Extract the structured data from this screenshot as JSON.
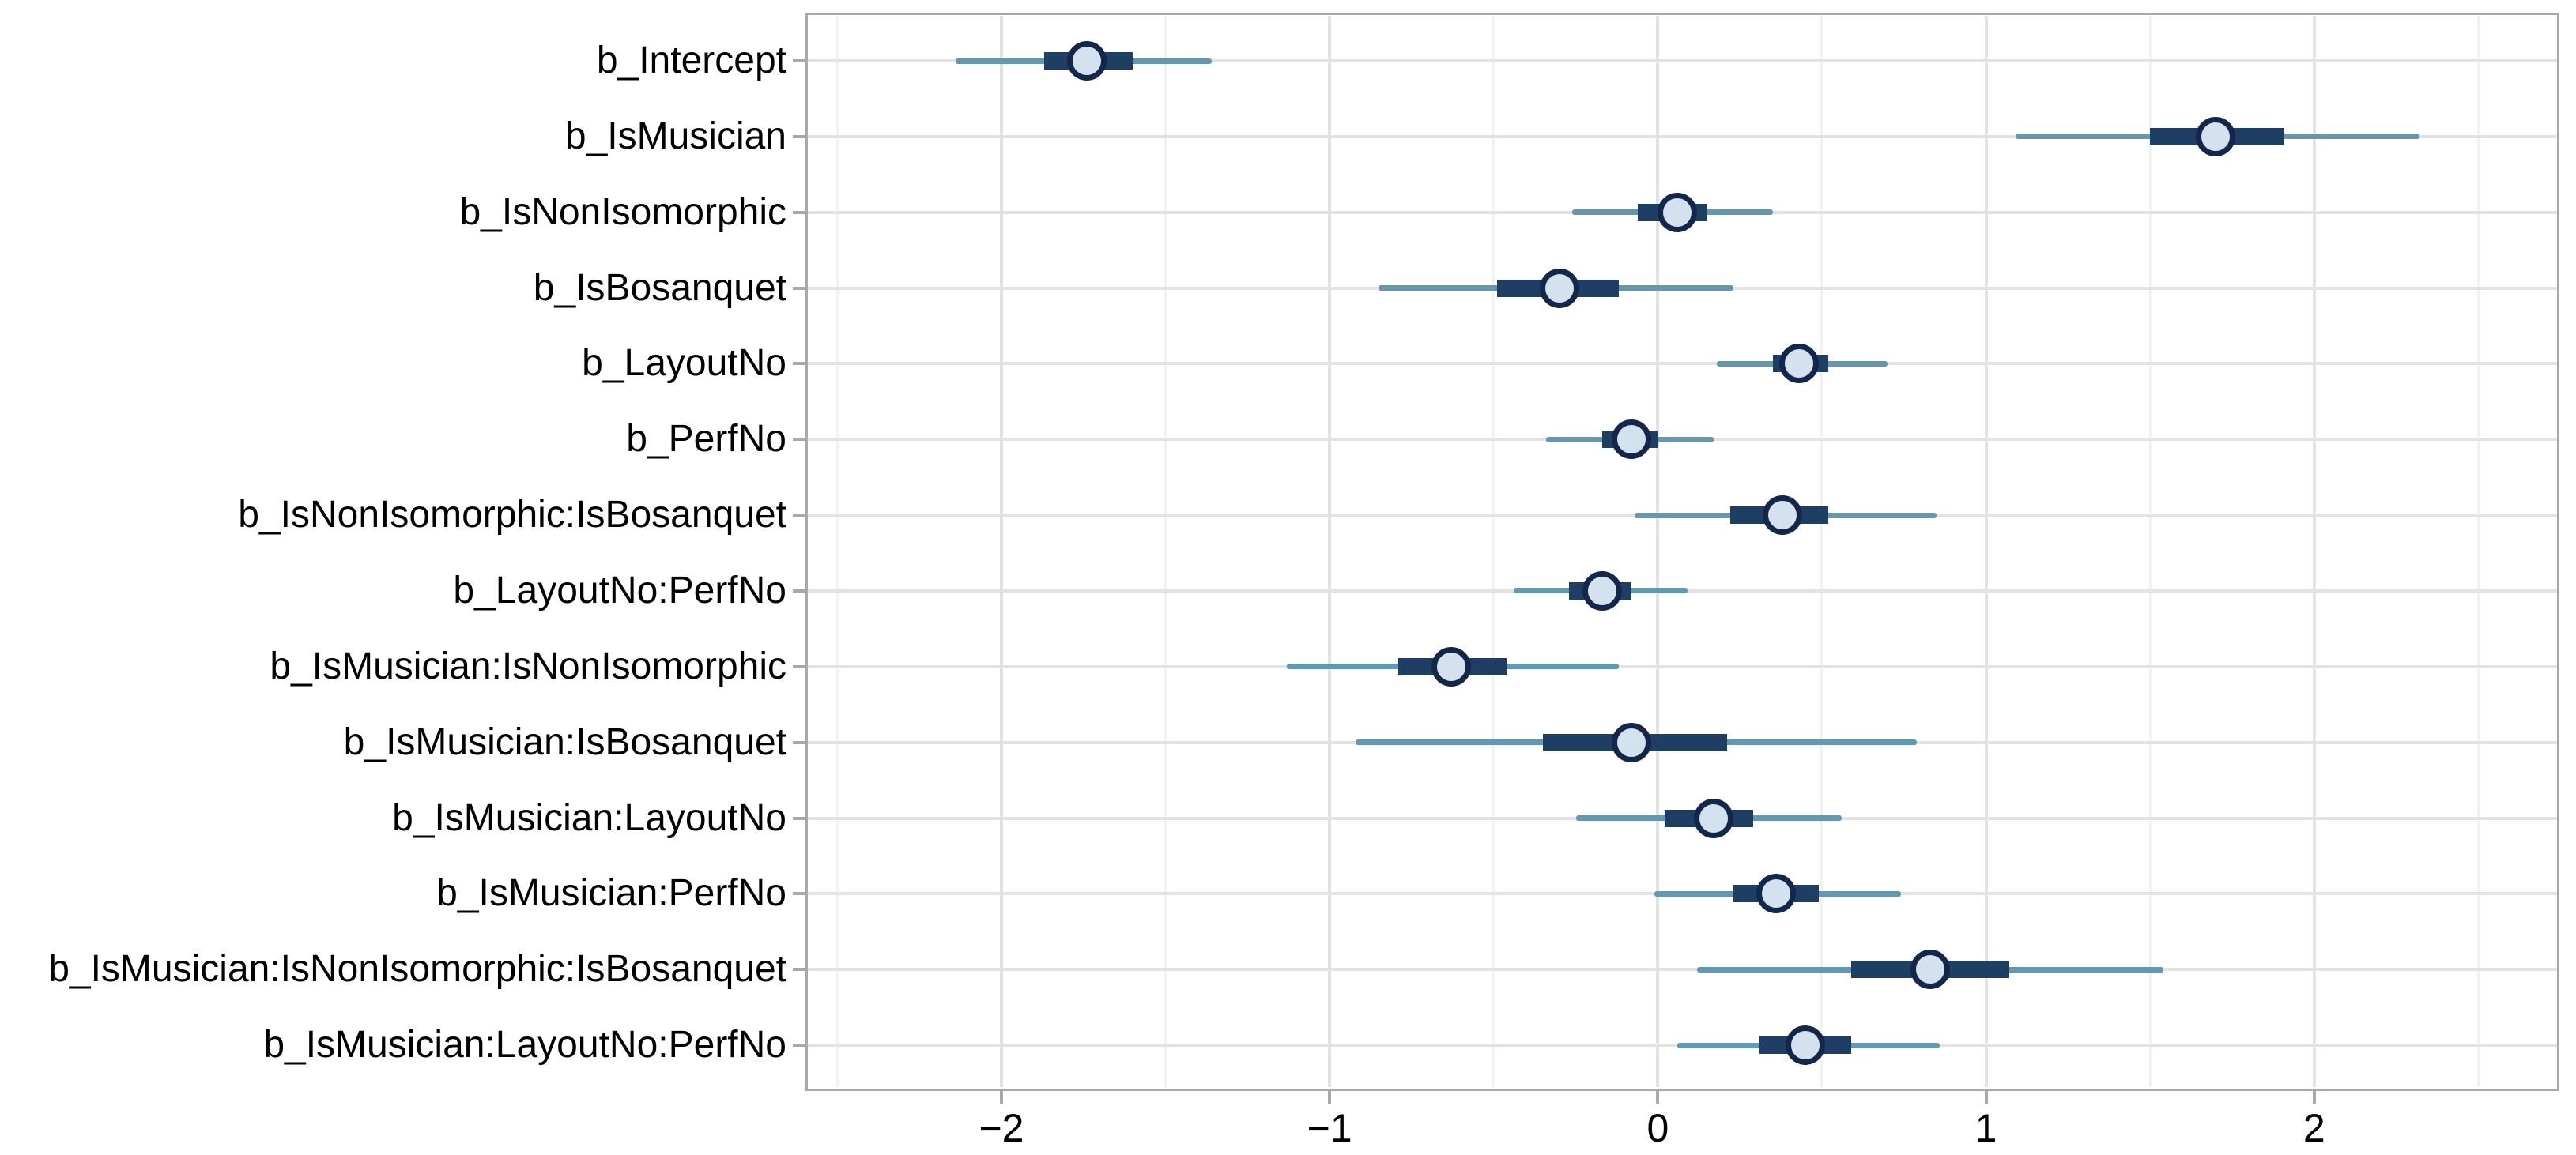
{
  "chart_data": {
    "type": "interval",
    "title": "",
    "xlabel": "",
    "ylabel": "",
    "point_estimate": "median",
    "legend": "none",
    "grid": "on",
    "xlim": [
      -2.59,
      2.74
    ],
    "x_major_ticks": [
      -2,
      -1,
      0,
      1,
      2
    ],
    "x_tick_labels": [
      "−2",
      "−1",
      "0",
      "1",
      "2"
    ],
    "x_minor_gridlines": [
      -2.5,
      -1.5,
      -0.5,
      0.5,
      1.5,
      2.5
    ],
    "categories": [
      "b_Intercept",
      "b_IsMusician",
      "b_IsNonIsomorphic",
      "b_IsBosanquet",
      "b_LayoutNo",
      "b_PerfNo",
      "b_IsNonIsomorphic:IsBosanquet",
      "b_LayoutNo:PerfNo",
      "b_IsMusician:IsNonIsomorphic",
      "b_IsMusician:IsBosanquet",
      "b_IsMusician:LayoutNo",
      "b_IsMusician:PerfNo",
      "b_IsMusician:IsNonIsomorphic:IsBosanquet",
      "b_IsMusician:LayoutNo:PerfNo"
    ],
    "series": [
      {
        "parameter": "b_Intercept",
        "outer": [
          -2.14,
          -1.36
        ],
        "inner": [
          -1.87,
          -1.6
        ],
        "median": -1.74
      },
      {
        "parameter": "b_IsMusician",
        "outer": [
          1.09,
          2.32
        ],
        "inner": [
          1.5,
          1.91
        ],
        "median": 1.7
      },
      {
        "parameter": "b_IsNonIsomorphic",
        "outer": [
          -0.26,
          0.35
        ],
        "inner": [
          -0.06,
          0.15
        ],
        "median": 0.06
      },
      {
        "parameter": "b_IsBosanquet",
        "outer": [
          -0.85,
          0.23
        ],
        "inner": [
          -0.49,
          -0.12
        ],
        "median": -0.3
      },
      {
        "parameter": "b_LayoutNo",
        "outer": [
          0.18,
          0.7
        ],
        "inner": [
          0.35,
          0.52
        ],
        "median": 0.43
      },
      {
        "parameter": "b_PerfNo",
        "outer": [
          -0.34,
          0.17
        ],
        "inner": [
          -0.17,
          0.0
        ],
        "median": -0.08
      },
      {
        "parameter": "b_IsNonIsomorphic:IsBosanquet",
        "outer": [
          -0.07,
          0.85
        ],
        "inner": [
          0.22,
          0.52
        ],
        "median": 0.38
      },
      {
        "parameter": "b_LayoutNo:PerfNo",
        "outer": [
          -0.44,
          0.09
        ],
        "inner": [
          -0.27,
          -0.08
        ],
        "median": -0.17
      },
      {
        "parameter": "b_IsMusician:IsNonIsomorphic",
        "outer": [
          -1.13,
          -0.12
        ],
        "inner": [
          -0.79,
          -0.46
        ],
        "median": -0.63
      },
      {
        "parameter": "b_IsMusician:IsBosanquet",
        "outer": [
          -0.92,
          0.79
        ],
        "inner": [
          -0.35,
          0.21
        ],
        "median": -0.08
      },
      {
        "parameter": "b_IsMusician:LayoutNo",
        "outer": [
          -0.25,
          0.56
        ],
        "inner": [
          0.02,
          0.29
        ],
        "median": 0.17
      },
      {
        "parameter": "b_IsMusician:PerfNo",
        "outer": [
          -0.01,
          0.74
        ],
        "inner": [
          0.23,
          0.49
        ],
        "median": 0.36
      },
      {
        "parameter": "b_IsMusician:IsNonIsomorphic:IsBosanquet",
        "outer": [
          0.12,
          1.54
        ],
        "inner": [
          0.59,
          1.07
        ],
        "median": 0.83
      },
      {
        "parameter": "b_IsMusician:LayoutNo:PerfNo",
        "outer": [
          0.06,
          0.86
        ],
        "inner": [
          0.31,
          0.59
        ],
        "median": 0.45
      }
    ],
    "colors": {
      "outer_line": "#6497b1",
      "inner_bar": "#1f3e64",
      "point_fill": "#d3e2ee",
      "point_border": "#14274a",
      "grid_major": "#e3e3e3",
      "grid_minor": "#f2f2f2",
      "panel_border": "#a9a9a9",
      "tick": "#a9a9a9",
      "text": "#000000",
      "background": "#ffffff"
    }
  }
}
